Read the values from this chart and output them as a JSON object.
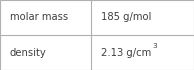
{
  "row_labels": [
    "molar mass",
    "density"
  ],
  "col_values_base": [
    "185 g/mol",
    "2.13 g/cm"
  ],
  "col_superscripts": [
    "",
    "3"
  ],
  "background_color": "#ffffff",
  "border_color": "#b0b0b0",
  "text_color": "#404040",
  "font_size": 7.2,
  "sup_font_size": 5.2,
  "figsize": [
    1.94,
    0.7
  ],
  "dpi": 100,
  "col_split": 0.47
}
